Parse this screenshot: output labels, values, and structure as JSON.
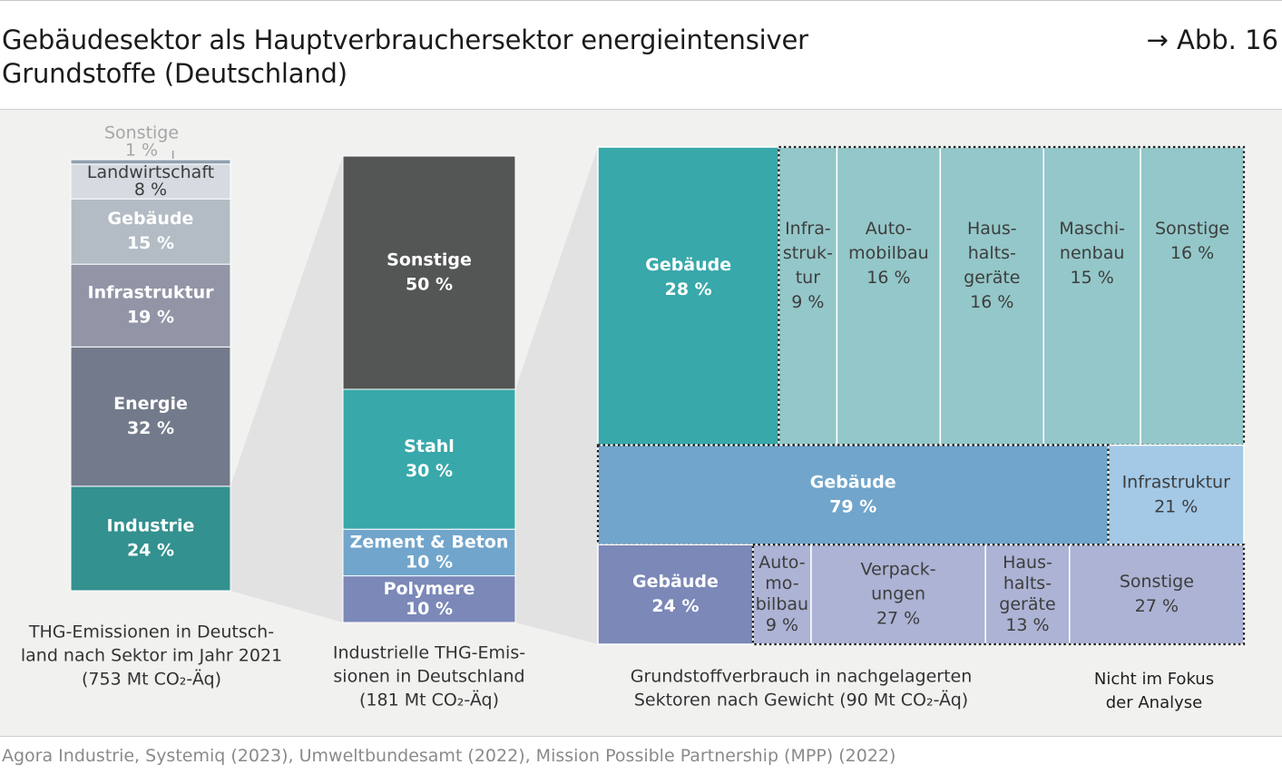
{
  "header": {
    "title_line1": "Gebäudesektor als Hauptverbrauchersektor energieintensiver",
    "title_line2": "Grundstoffe (Deutschland)",
    "figure_ref": "→ Abb. 16"
  },
  "footer": {
    "source": "Agora Industrie, Systemiq (2023), Umweltbundesamt (2022), Mission Possible Partnership (MPP) (2022)"
  },
  "colors": {
    "panel_bg": "#f1f1f0",
    "funnel": "#e2e2e2",
    "industrie": "#33918f",
    "energie": "#737a8b",
    "infrastruktur_grey": "#9195a6",
    "gebaeude_grey": "#b3bcc4",
    "landwirtschaft": "#d5dbe0",
    "sonstige_thin": "#8fa0ae",
    "sonstige_dark": "#545555",
    "teal": "#38a8aa",
    "teal_light": "#94c7c9",
    "blue": "#71a5cb",
    "blue_light": "#a3c9e7",
    "purple": "#7b88b8",
    "purple_light": "#adb3d4",
    "dark_text": "#3d3d3d",
    "light_text": "#ffffff"
  },
  "chart_data": [
    {
      "type": "bar",
      "stacked": true,
      "caption": [
        "THG-Emissionen in Deutsch-",
        "land nach Sektor im Jahr 2021",
        "(753 Mt CO₂-Äq)"
      ],
      "segments": [
        {
          "label": [
            "Industrie"
          ],
          "value": 24,
          "value_label": "24 %",
          "color": "#33918f",
          "text": "light"
        },
        {
          "label": [
            "Energie"
          ],
          "value": 32,
          "value_label": "32 %",
          "color": "#737a8b",
          "text": "light"
        },
        {
          "label": [
            "Infrastruktur"
          ],
          "value": 19,
          "value_label": "19 %",
          "color": "#9195a6",
          "text": "light"
        },
        {
          "label": [
            "Gebäude"
          ],
          "value": 15,
          "value_label": "15 %",
          "color": "#b3bcc4",
          "text": "light"
        },
        {
          "label": [
            "Landwirtschaft"
          ],
          "value": 8,
          "value_label": "8 %",
          "color": "#d5dbe0",
          "text": "dark"
        },
        {
          "label": [
            "Sonstige"
          ],
          "value": 1,
          "value_label": "1 %",
          "color": "#8fa0ae",
          "text": "outside"
        }
      ]
    },
    {
      "type": "bar",
      "stacked": true,
      "caption": [
        "Industrielle THG-Emis-",
        "sionen in Deutschland",
        "(181 Mt CO₂-Äq)"
      ],
      "segments": [
        {
          "label": [
            "Polymere"
          ],
          "value": 10,
          "value_label": "10 %",
          "color": "#7b88b8",
          "text": "light"
        },
        {
          "label": [
            "Zement & Beton"
          ],
          "value": 10,
          "value_label": "10 %",
          "color": "#71a5cb",
          "text": "light"
        },
        {
          "label": [
            "Stahl"
          ],
          "value": 30,
          "value_label": "30 %",
          "color": "#38a8aa",
          "text": "light"
        },
        {
          "label": [
            "Sonstige"
          ],
          "value": 50,
          "value_label": "50 %",
          "color": "#545555",
          "text": "light"
        }
      ]
    },
    {
      "type": "table",
      "subtype": "marimekko",
      "caption": [
        "Grundstoffverbrauch in nachgelagerten",
        "Sektoren nach Gewicht (90 Mt CO₂-Äq)"
      ],
      "legend_note": [
        "Nicht im Fokus",
        "der Analyse"
      ],
      "rows": [
        {
          "material": "Stahl",
          "share": 50,
          "cells": [
            {
              "label": [
                "Gebäude"
              ],
              "value": 28,
              "value_label": "28 %",
              "color": "#38a8aa",
              "text": "light",
              "focus": true
            },
            {
              "label": [
                "Infra-",
                "struk-",
                "tur"
              ],
              "value": 9,
              "value_label": "9 %",
              "color": "#94c7c9",
              "text": "dark",
              "focus": false
            },
            {
              "label": [
                "Auto-",
                "mobilbau"
              ],
              "value": 16,
              "value_label": "16 %",
              "color": "#94c7c9",
              "text": "dark",
              "focus": false
            },
            {
              "label": [
                "Haus-",
                "halts-",
                "geräte"
              ],
              "value": 16,
              "value_label": "16 %",
              "color": "#94c7c9",
              "text": "dark",
              "focus": false
            },
            {
              "label": [
                "Maschi-",
                "nenbau"
              ],
              "value": 15,
              "value_label": "15 %",
              "color": "#94c7c9",
              "text": "dark",
              "focus": false
            },
            {
              "label": [
                "Sonstige"
              ],
              "value": 16,
              "value_label": "16 %",
              "color": "#94c7c9",
              "text": "dark",
              "focus": false
            }
          ]
        },
        {
          "material": "Zement & Beton",
          "share": 16.7,
          "cells": [
            {
              "label": [
                "Gebäude"
              ],
              "value": 79,
              "value_label": "79 %",
              "color": "#71a5cb",
              "text": "light",
              "focus": true
            },
            {
              "label": [
                "Infrastruktur"
              ],
              "value": 21,
              "value_label": "21 %",
              "color": "#a3c9e7",
              "text": "dark",
              "focus": false
            }
          ]
        },
        {
          "material": "Polymere",
          "share": 16.7,
          "cells": [
            {
              "label": [
                "Gebäude"
              ],
              "value": 24,
              "value_label": "24 %",
              "color": "#7b88b8",
              "text": "light",
              "focus": true
            },
            {
              "label": [
                "Auto-",
                "mo-",
                "bilbau"
              ],
              "value": 9,
              "value_label": "9 %",
              "color": "#adb3d4",
              "text": "dark",
              "focus": false
            },
            {
              "label": [
                "Verpack-",
                "ungen"
              ],
              "value": 27,
              "value_label": "27 %",
              "color": "#adb3d4",
              "text": "dark",
              "focus": false
            },
            {
              "label": [
                "Haus-",
                "halts-",
                "geräte"
              ],
              "value": 13,
              "value_label": "13 %",
              "color": "#adb3d4",
              "text": "dark",
              "focus": false
            },
            {
              "label": [
                "Sonstige"
              ],
              "value": 27,
              "value_label": "27 %",
              "color": "#adb3d4",
              "text": "dark",
              "focus": false
            }
          ]
        }
      ]
    }
  ]
}
